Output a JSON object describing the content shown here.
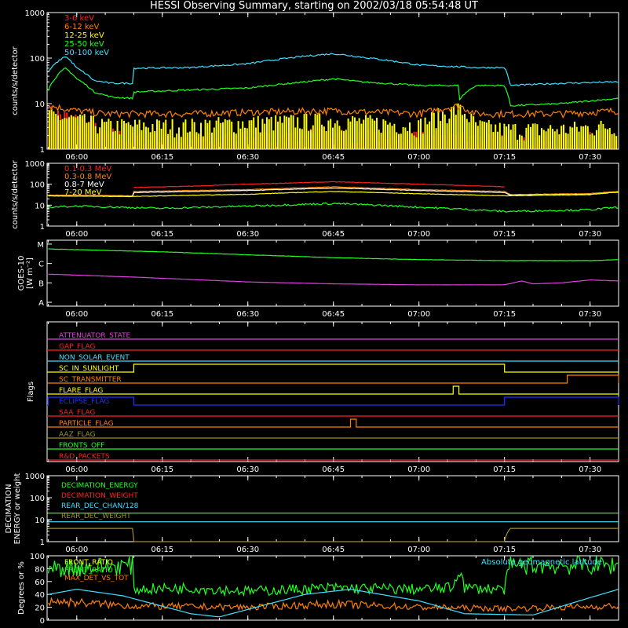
{
  "title": "HESSI Observing Summary, starting on 2002/03/18 05:54:48 UT",
  "colors": {
    "red": "#ff2020",
    "orange": "#ff8000",
    "yellow": "#ffff00",
    "green": "#20ff20",
    "cyan": "#40e0ff",
    "magenta": "#e040e0",
    "blue": "#2030ff",
    "olive": "#a09020",
    "white": "#ffffff"
  },
  "time_axis": {
    "start": "05:54:48",
    "end": "07:35:00",
    "tick_labels": [
      "06:00",
      "06:15",
      "06:30",
      "06:45",
      "07:00",
      "07:15",
      "07:30"
    ]
  },
  "chart_data": [
    {
      "type": "line",
      "name": "panel1",
      "ylabel": "counts/s/detector",
      "yscale": "log",
      "ylim": [
        1,
        1000
      ],
      "ytick_labels": [
        "1",
        "10",
        "100",
        "1000"
      ],
      "series": [
        {
          "name": "3-6 keV",
          "color": "red",
          "x": [
            "05:55",
            "06:00",
            "06:05",
            "06:10",
            "06:20",
            "06:30",
            "06:45",
            "07:00",
            "07:05",
            "07:10",
            "07:15",
            "07:25",
            "07:35"
          ],
          "y": [
            6,
            4,
            2,
            1.5,
            1.5,
            1.5,
            2,
            1.5,
            2,
            1.5,
            1.5,
            1.5,
            1.5
          ]
        },
        {
          "name": "6-12 keV",
          "color": "orange",
          "x": [
            "05:55",
            "06:00",
            "06:05",
            "06:10",
            "06:20",
            "06:30",
            "06:45",
            "07:00",
            "07:07",
            "07:10",
            "07:15",
            "07:25",
            "07:35"
          ],
          "y": [
            9,
            7,
            6,
            6,
            6,
            6.5,
            7,
            6,
            9,
            6,
            6,
            6,
            7
          ]
        },
        {
          "name": "12-25 keV",
          "color": "yellow",
          "x": [
            "05:55",
            "06:00",
            "06:05",
            "06:10",
            "06:20",
            "06:30",
            "06:45",
            "07:00",
            "07:07",
            "07:10",
            "07:15",
            "07:25",
            "07:35"
          ],
          "y": [
            5,
            4,
            3,
            3,
            3,
            3.5,
            4,
            3,
            7,
            3,
            2.5,
            2.5,
            3
          ]
        },
        {
          "name": "25-50 keV",
          "color": "green",
          "x": [
            "05:55",
            "05:58",
            "06:00",
            "06:03",
            "06:06",
            "06:10",
            "06:10",
            "06:20",
            "06:30",
            "06:40",
            "06:45",
            "06:50",
            "07:00",
            "07:07",
            "07:07",
            "07:10",
            "07:15",
            "07:16",
            "07:25",
            "07:35"
          ],
          "y": [
            20,
            60,
            35,
            18,
            14,
            13,
            18,
            20,
            22,
            30,
            35,
            30,
            25,
            25,
            12,
            25,
            25,
            9,
            10,
            13
          ]
        },
        {
          "name": "50-100 keV",
          "color": "cyan",
          "x": [
            "05:55",
            "05:58",
            "06:00",
            "06:03",
            "06:06",
            "06:10",
            "06:10",
            "06:20",
            "06:30",
            "06:40",
            "06:45",
            "06:50",
            "07:00",
            "07:10",
            "07:15",
            "07:16",
            "07:25",
            "07:35"
          ],
          "y": [
            50,
            110,
            60,
            32,
            28,
            28,
            60,
            62,
            75,
            110,
            125,
            105,
            70,
            62,
            62,
            25,
            28,
            30
          ]
        }
      ]
    },
    {
      "type": "line",
      "name": "panel2",
      "ylabel": "counts/s/detector",
      "yscale": "log",
      "ylim": [
        1,
        1000
      ],
      "ytick_labels": [
        "1",
        "10",
        "100",
        "1000"
      ],
      "series": [
        {
          "name": "0.1-0.3 MeV",
          "color": "red",
          "x": [
            "06:10",
            "06:20",
            "06:30",
            "06:45",
            "07:00",
            "07:15"
          ],
          "y": [
            70,
            80,
            100,
            130,
            100,
            75
          ]
        },
        {
          "name": "0.3-0.8 MeV",
          "color": "orange",
          "x": [
            "05:55",
            "06:10",
            "06:10",
            "06:30",
            "06:45",
            "07:00",
            "07:15",
            "07:16",
            "07:30",
            "07:35"
          ],
          "y": [
            30,
            28,
            45,
            55,
            75,
            55,
            45,
            32,
            36,
            45
          ]
        },
        {
          "name": "0.8-7 MeV",
          "color": "white",
          "x": [
            "05:55",
            "06:10",
            "06:10",
            "06:30",
            "06:45",
            "07:00",
            "07:15",
            "07:16",
            "07:30",
            "07:35"
          ],
          "y": [
            28,
            26,
            40,
            50,
            65,
            50,
            40,
            30,
            33,
            42
          ]
        },
        {
          "name": "7-20 MeV",
          "color": "yellow",
          "x": [
            "05:55",
            "06:10",
            "06:30",
            "06:45",
            "07:00",
            "07:15",
            "07:30",
            "07:35"
          ],
          "y": [
            28,
            26,
            33,
            45,
            35,
            28,
            32,
            42
          ]
        },
        {
          "name": "",
          "color": "green",
          "x": [
            "05:55",
            "06:00",
            "06:15",
            "06:30",
            "06:45",
            "07:00",
            "07:15",
            "07:30",
            "07:35"
          ],
          "y": [
            8,
            9,
            7,
            9,
            12,
            8,
            5,
            6,
            8
          ]
        }
      ]
    },
    {
      "type": "line",
      "name": "panel3",
      "ylabel": "GOES-10",
      "ylabel2": "[W m⁻²]",
      "yscale": "category",
      "ytick_labels": [
        "A",
        "B",
        "C",
        "M"
      ],
      "series": [
        {
          "name": "",
          "color": "green",
          "x": [
            "05:55",
            "06:15",
            "06:30",
            "06:45",
            "07:00",
            "07:15",
            "07:30",
            "07:35"
          ],
          "y": [
            3.75,
            3.6,
            3.45,
            3.3,
            3.2,
            3.15,
            3.15,
            3.2
          ]
        },
        {
          "name": "",
          "color": "magenta",
          "x": [
            "05:55",
            "06:10",
            "06:30",
            "06:45",
            "07:00",
            "07:10",
            "07:15",
            "07:18",
            "07:20",
            "07:25",
            "07:30",
            "07:35"
          ],
          "y": [
            2.45,
            2.3,
            2.05,
            1.95,
            1.9,
            1.9,
            1.9,
            2.1,
            1.95,
            2.0,
            2.15,
            2.1
          ]
        }
      ]
    },
    {
      "type": "line",
      "name": "flags",
      "ylabel": "Flags",
      "series": [
        {
          "name": "ATTENUATOR_STATE",
          "color": "magenta",
          "steps": []
        },
        {
          "name": "GAP_FLAG",
          "color": "red",
          "steps": []
        },
        {
          "name": "NON_SOLAR_EVENT",
          "color": "cyan",
          "steps": []
        },
        {
          "name": "SC_IN_SUNLIGHT",
          "color": "yellow",
          "steps": [
            [
              "06:10",
              "07:15"
            ]
          ]
        },
        {
          "name": "SC_TRANSMITTER",
          "color": "orange",
          "steps": [
            [
              "07:26",
              "07:35"
            ]
          ]
        },
        {
          "name": "FLARE_FLAG",
          "color": "yellow",
          "steps": [
            [
              "07:06",
              "07:07"
            ]
          ]
        },
        {
          "name": "ECLIPSE_FLAG",
          "color": "blue",
          "steps": [
            [
              "05:55",
              "06:10"
            ],
            [
              "07:15",
              "07:35"
            ]
          ]
        },
        {
          "name": "SAA_FLAG",
          "color": "red",
          "steps": []
        },
        {
          "name": "PARTICLE_FLAG",
          "color": "orange",
          "steps": [
            [
              "06:48",
              "06:49"
            ]
          ]
        },
        {
          "name": "AAZ_FLAG",
          "color": "olive",
          "steps": []
        },
        {
          "name": "FRONTS_OFF",
          "color": "green",
          "steps": []
        },
        {
          "name": "R&D_PACKETS",
          "color": "red",
          "steps": []
        }
      ]
    },
    {
      "type": "line",
      "name": "decimation",
      "ylabel": "DECIMATION",
      "ylabel2": "ENERGY or weight",
      "yscale": "log",
      "ylim": [
        1,
        1000
      ],
      "ytick_labels": [
        "1",
        "10",
        "100",
        "1000"
      ],
      "series": [
        {
          "name": "DECIMATION_ENERGY",
          "color": "green",
          "x": [
            "05:55",
            "07:35"
          ],
          "y": [
            20,
            20
          ]
        },
        {
          "name": "DECIMATION_WEIGHT",
          "color": "red",
          "x": [],
          "y": []
        },
        {
          "name": "REAR_DEC_CHAN/128",
          "color": "cyan",
          "x": [
            "05:55",
            "07:15",
            "07:16",
            "07:35"
          ],
          "y": [
            8,
            8,
            8,
            8
          ]
        },
        {
          "name": "REAR_DEC_WEIGHT",
          "color": "olive",
          "x": [
            "05:55",
            "06:10",
            "06:10",
            "07:15",
            "07:16",
            "07:35"
          ],
          "y": [
            4,
            4,
            1,
            1,
            4,
            4
          ]
        }
      ]
    },
    {
      "type": "line",
      "name": "ratios",
      "ylabel": "Degrees or %",
      "ylim": [
        0,
        100
      ],
      "ytick_labels": [
        "0",
        "20",
        "40",
        "60",
        "80",
        "100"
      ],
      "annotation": "Absolute geomagnetic latitude",
      "series": [
        {
          "name": "FRONT_RATIO",
          "color": "yellow",
          "x": [],
          "y": []
        },
        {
          "name": "FRONT_RATIO",
          "color": "green",
          "x": [
            "05:55",
            "06:00",
            "06:05",
            "06:10",
            "06:10",
            "06:20",
            "06:30",
            "06:45",
            "07:00",
            "07:06",
            "07:07",
            "07:08",
            "07:15",
            "07:16",
            "07:25",
            "07:35"
          ],
          "y": [
            80,
            82,
            84,
            85,
            48,
            50,
            45,
            50,
            48,
            50,
            85,
            50,
            48,
            85,
            85,
            85
          ]
        },
        {
          "name": "MAX_DET_VS_TOT",
          "color": "orange",
          "x": [
            "05:55",
            "06:10",
            "06:30",
            "06:45",
            "07:00",
            "07:15",
            "07:35"
          ],
          "y": [
            30,
            22,
            20,
            25,
            20,
            18,
            22
          ]
        },
        {
          "name": "",
          "color": "cyan",
          "x": [
            "05:55",
            "06:00",
            "06:08",
            "06:20",
            "06:25",
            "06:40",
            "06:48",
            "07:00",
            "07:08",
            "07:20",
            "07:30",
            "07:35"
          ],
          "y": [
            40,
            48,
            38,
            10,
            5,
            40,
            48,
            30,
            10,
            8,
            35,
            48
          ]
        }
      ]
    }
  ]
}
